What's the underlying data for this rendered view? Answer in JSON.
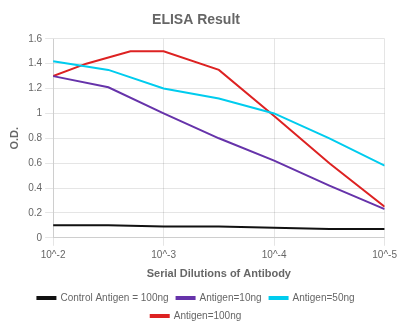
{
  "chart_data": {
    "type": "line",
    "title": "ELISA Result",
    "xlabel": "Serial Dilutions of Antibody",
    "ylabel": "O.D.",
    "xlim": [
      -2,
      -5
    ],
    "xticks": [
      {
        "value": -2,
        "label": "10^-2"
      },
      {
        "value": -3,
        "label": "10^-3"
      },
      {
        "value": -4,
        "label": "10^-4"
      },
      {
        "value": -5,
        "label": "10^-5"
      }
    ],
    "ylim": [
      0,
      1.6
    ],
    "yticks": [
      0,
      0.2,
      0.4,
      0.6,
      0.8,
      1,
      1.2,
      1.4,
      1.6
    ],
    "grid": true,
    "legend": "bottom",
    "series": [
      {
        "name": "Control Antigen = 100ng",
        "color": "#111111",
        "x": [
          -2,
          -2.5,
          -3,
          -3.5,
          -4,
          -4.5,
          -5
        ],
        "values": [
          0.1,
          0.1,
          0.09,
          0.09,
          0.08,
          0.07,
          0.07
        ]
      },
      {
        "name": "Antigen=10ng",
        "color": "#6633aa",
        "x": [
          -2,
          -2.5,
          -3,
          -3.5,
          -4,
          -4.5,
          -5
        ],
        "values": [
          1.3,
          1.21,
          1.0,
          0.8,
          0.62,
          0.42,
          0.23
        ]
      },
      {
        "name": "Antigen=50ng",
        "color": "#00ccee",
        "x": [
          -2,
          -2.5,
          -3,
          -3.5,
          -4,
          -4.5,
          -5
        ],
        "values": [
          1.42,
          1.35,
          1.2,
          1.12,
          1.0,
          0.8,
          0.58
        ]
      },
      {
        "name": "Antigen=100ng",
        "color": "#dd2222",
        "x": [
          -2,
          -2.3,
          -2.7,
          -3.0,
          -3.5,
          -4.0,
          -4.5,
          -5.0
        ],
        "values": [
          1.3,
          1.4,
          1.5,
          1.5,
          1.35,
          0.98,
          0.6,
          0.25
        ]
      }
    ]
  }
}
